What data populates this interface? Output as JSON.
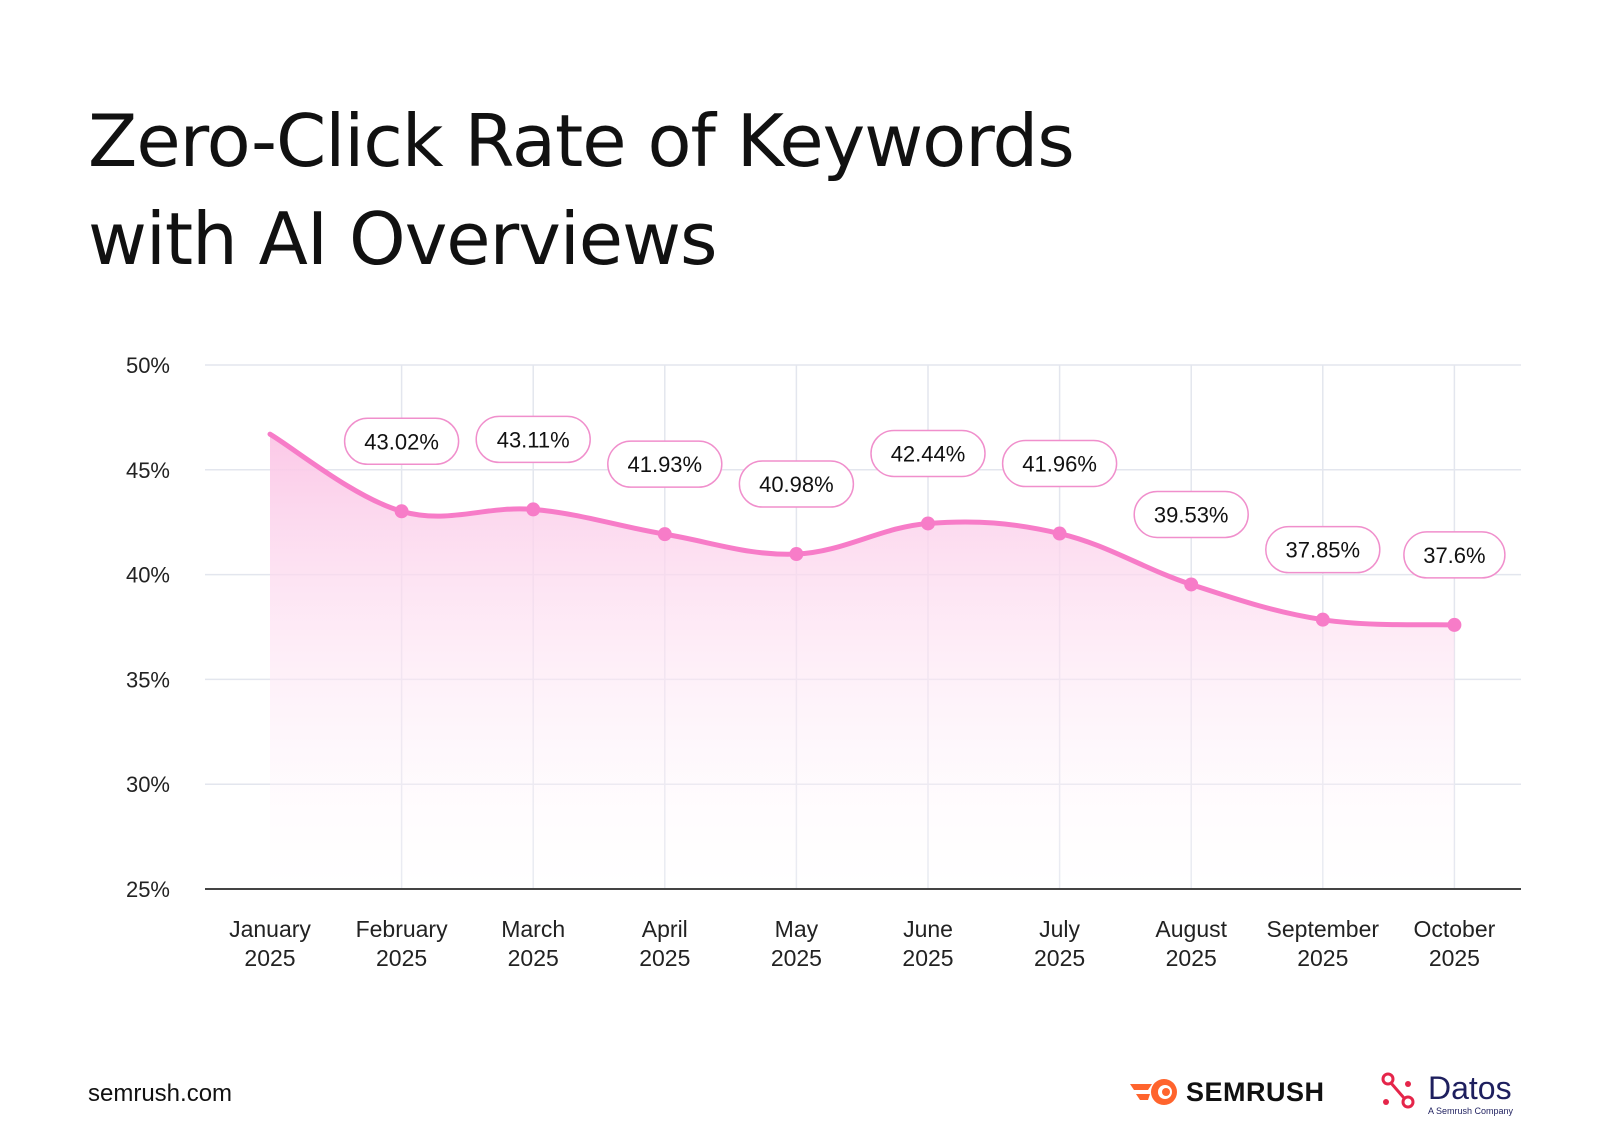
{
  "title": {
    "line1": "Zero-Click Rate of Keywords",
    "line2": "with AI Overviews"
  },
  "footer": {
    "url": "semrush.com",
    "semrush_label": "SEMRUSH",
    "datos_label": "Datos",
    "datos_sub": "A Semrush Company"
  },
  "colors": {
    "line": "#f77cc8",
    "fill_top": "#fbc6e6",
    "grid": "#e3e6ee",
    "label_border": "#f08fcc",
    "semrush_orange": "#ff642d",
    "datos_red": "#e5254a",
    "datos_navy": "#1e1f5e"
  },
  "chart_data": {
    "type": "area",
    "title": "Zero-Click Rate of Keywords with AI Overviews",
    "xlabel": "",
    "ylabel": "",
    "categories": [
      "January 2025",
      "February 2025",
      "March 2025",
      "April 2025",
      "May 2025",
      "June 2025",
      "July 2025",
      "August 2025",
      "September 2025",
      "October 2025"
    ],
    "x_labels": [
      [
        "January",
        "2025"
      ],
      [
        "February",
        "2025"
      ],
      [
        "March",
        "2025"
      ],
      [
        "April",
        "2025"
      ],
      [
        "May",
        "2025"
      ],
      [
        "June",
        "2025"
      ],
      [
        "July",
        "2025"
      ],
      [
        "August",
        "2025"
      ],
      [
        "September",
        "2025"
      ],
      [
        "October",
        "2025"
      ]
    ],
    "values": [
      46.7,
      43.02,
      43.11,
      41.93,
      40.98,
      42.44,
      41.96,
      39.53,
      37.85,
      37.6
    ],
    "data_labels": [
      null,
      "43.02%",
      "43.11%",
      "41.93%",
      "40.98%",
      "42.44%",
      "41.96%",
      "39.53%",
      "37.85%",
      "37.6%"
    ],
    "yticks": [
      "50%",
      "45%",
      "40%",
      "35%",
      "30%",
      "25%"
    ],
    "ylim": [
      25,
      50
    ],
    "grid": true,
    "legend": null
  }
}
